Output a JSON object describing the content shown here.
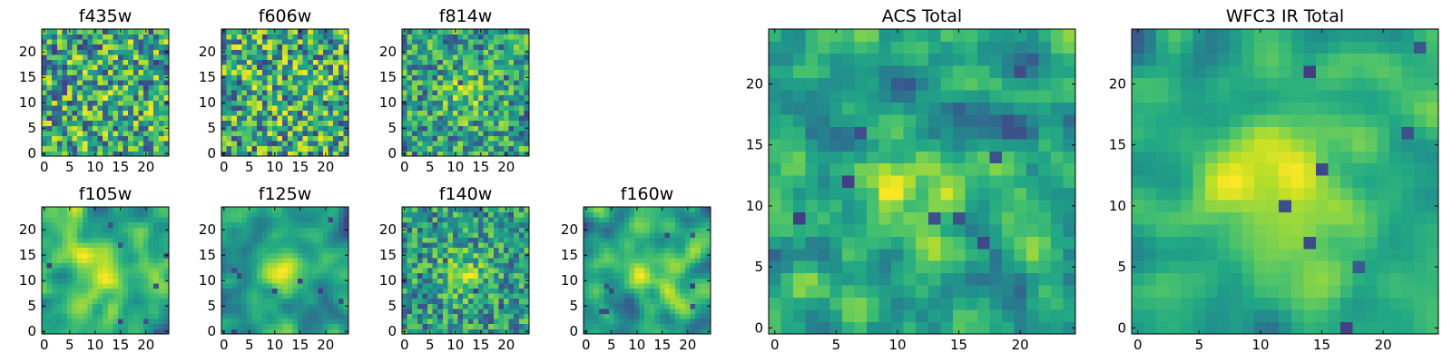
{
  "chart_data": [
    {
      "type": "heatmap",
      "title": "f435w",
      "xticks": [
        "0",
        "5",
        "10",
        "15",
        "20"
      ],
      "yticks": [
        "0",
        "5",
        "10",
        "15",
        "20"
      ],
      "xlim": [
        -0.5,
        24.5
      ],
      "ylim": [
        -0.5,
        24.5
      ],
      "grid_size": 25,
      "colormap": "viridis",
      "texture": "noisy",
      "center_blob": 0.05,
      "seed": 11
    },
    {
      "type": "heatmap",
      "title": "f606w",
      "xticks": [
        "0",
        "5",
        "10",
        "15",
        "20"
      ],
      "yticks": [
        "0",
        "5",
        "10",
        "15",
        "20"
      ],
      "xlim": [
        -0.5,
        24.5
      ],
      "ylim": [
        -0.5,
        24.5
      ],
      "grid_size": 25,
      "colormap": "viridis",
      "texture": "noisy",
      "center_blob": 0.05,
      "seed": 23
    },
    {
      "type": "heatmap",
      "title": "f814w",
      "xticks": [
        "0",
        "5",
        "10",
        "15",
        "20"
      ],
      "yticks": [
        "0",
        "5",
        "10",
        "15",
        "20"
      ],
      "xlim": [
        -0.5,
        24.5
      ],
      "ylim": [
        -0.5,
        24.5
      ],
      "grid_size": 25,
      "colormap": "viridis",
      "texture": "noisy",
      "center_blob": 0.25,
      "seed": 37
    },
    {
      "type": "heatmap",
      "title": "f105w",
      "xticks": [
        "0",
        "5",
        "10",
        "15",
        "20"
      ],
      "yticks": [
        "0",
        "5",
        "10",
        "15",
        "20"
      ],
      "xlim": [
        -0.5,
        24.5
      ],
      "ylim": [
        -0.5,
        24.5
      ],
      "grid_size": 25,
      "colormap": "viridis",
      "texture": "smooth",
      "center_blob": 0.35,
      "seed": 41
    },
    {
      "type": "heatmap",
      "title": "f125w",
      "xticks": [
        "0",
        "5",
        "10",
        "15",
        "20"
      ],
      "yticks": [
        "0",
        "5",
        "10",
        "15",
        "20"
      ],
      "xlim": [
        -0.5,
        24.5
      ],
      "ylim": [
        -0.5,
        24.5
      ],
      "grid_size": 25,
      "colormap": "viridis",
      "texture": "smooth",
      "center_blob": 0.4,
      "seed": 53
    },
    {
      "type": "heatmap",
      "title": "f140w",
      "xticks": [
        "0",
        "5",
        "10",
        "15",
        "20"
      ],
      "yticks": [
        "0",
        "5",
        "10",
        "15",
        "20"
      ],
      "xlim": [
        -0.5,
        24.5
      ],
      "ylim": [
        -0.5,
        24.5
      ],
      "grid_size": 25,
      "colormap": "viridis",
      "texture": "noisy",
      "center_blob": 0.3,
      "seed": 67
    },
    {
      "type": "heatmap",
      "title": "f160w",
      "xticks": [
        "0",
        "5",
        "10",
        "15",
        "20"
      ],
      "yticks": [
        "0",
        "5",
        "10",
        "15",
        "20"
      ],
      "xlim": [
        -0.5,
        24.5
      ],
      "ylim": [
        -0.5,
        24.5
      ],
      "grid_size": 25,
      "colormap": "viridis",
      "texture": "smooth",
      "center_blob": 0.35,
      "seed": 79
    },
    {
      "type": "heatmap",
      "title": "ACS Total",
      "xticks": [
        "0",
        "5",
        "10",
        "15",
        "20"
      ],
      "yticks": [
        "0",
        "5",
        "10",
        "15",
        "20"
      ],
      "xlim": [
        -0.5,
        24.5
      ],
      "ylim": [
        -0.5,
        24.5
      ],
      "grid_size": 25,
      "colormap": "viridis",
      "texture": "medium",
      "center_blob": 0.3,
      "seed": 97
    },
    {
      "type": "heatmap",
      "title": "WFC3 IR Total",
      "xticks": [
        "0",
        "5",
        "10",
        "15",
        "20"
      ],
      "yticks": [
        "0",
        "5",
        "10",
        "15",
        "20"
      ],
      "xlim": [
        -0.5,
        24.5
      ],
      "ylim": [
        -0.5,
        24.5
      ],
      "grid_size": 25,
      "colormap": "viridis",
      "texture": "smooth",
      "center_blob": 0.45,
      "seed": 103
    }
  ]
}
